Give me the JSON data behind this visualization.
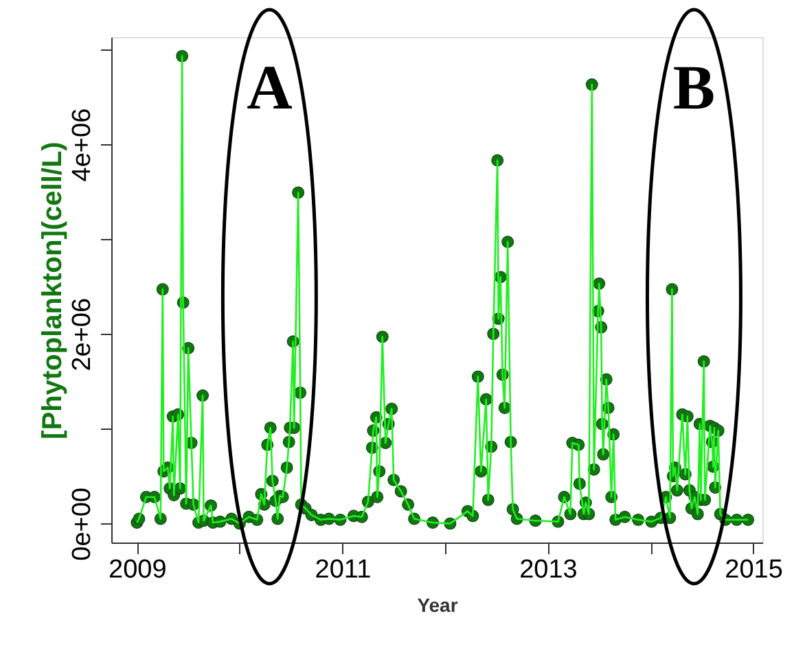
{
  "chart_data": {
    "type": "line",
    "xlabel": "Year",
    "ylabel": "[Phytoplankton](cell/L)",
    "xlim": [
      2008.75,
      2015.09
    ],
    "xticks": [
      2009,
      {
        "value": 2010,
        "label": null
      },
      2011,
      {
        "value": 2012,
        "label": null
      },
      2013,
      {
        "value": 2014,
        "label": null
      },
      2015
    ],
    "ylim": [
      -200000,
      5130000
    ],
    "yticks": [
      {
        "value": 0,
        "label": "0e+00"
      },
      {
        "value": 1000000,
        "label": null
      },
      {
        "value": 2000000,
        "label": "2e+06"
      },
      {
        "value": 3000000,
        "label": null
      },
      {
        "value": 4000000,
        "label": "4e+06"
      },
      {
        "value": 5000000,
        "label": null
      }
    ],
    "marker": "circle",
    "line_style": "solid",
    "annotations": [
      "A",
      "B"
    ],
    "series": [
      {
        "color": "#117711",
        "x": [
          2009.0,
          2009.02,
          2009.09,
          2009.17,
          2009.23,
          2009.25,
          2009.26,
          2009.3,
          2009.32,
          2009.35,
          2009.36,
          2009.4,
          2009.42,
          2009.44,
          2009.45,
          2009.48,
          2009.5,
          2009.53,
          2009.55,
          2009.6,
          2009.64,
          2009.65,
          2009.72,
          2009.74,
          2009.81,
          2009.92,
          2010.0,
          2010.09,
          2010.17,
          2010.21,
          2010.24,
          2010.27,
          2010.3,
          2010.32,
          2010.35,
          2010.37,
          2010.39,
          2010.42,
          2010.46,
          2010.48,
          2010.49,
          2010.52,
          2010.53,
          2010.57,
          2010.59,
          2010.6,
          2010.64,
          2010.7,
          2010.79,
          2010.87,
          2010.98,
          2011.11,
          2011.19,
          2011.25,
          2011.29,
          2011.3,
          2011.33,
          2011.34,
          2011.36,
          2011.39,
          2011.42,
          2011.45,
          2011.48,
          2011.5,
          2011.57,
          2011.64,
          2011.7,
          2011.88,
          2012.05,
          2012.22,
          2012.27,
          2012.32,
          2012.35,
          2012.4,
          2012.42,
          2012.45,
          2012.47,
          2012.51,
          2012.52,
          2012.54,
          2012.56,
          2012.58,
          2012.61,
          2012.64,
          2012.66,
          2012.7,
          2012.88,
          2013.1,
          2013.16,
          2013.22,
          2013.24,
          2013.3,
          2013.31,
          2013.35,
          2013.37,
          2013.4,
          2013.43,
          2013.45,
          2013.49,
          2013.5,
          2013.52,
          2013.53,
          2013.54,
          2013.57,
          2013.59,
          2013.62,
          2013.64,
          2013.66,
          2013.75,
          2013.88,
          2014.01,
          2014.1,
          2014.15,
          2014.19,
          2014.21,
          2014.22,
          2014.24,
          2014.26,
          2014.31,
          2014.34,
          2014.36,
          2014.38,
          2014.4,
          2014.43,
          2014.46,
          2014.48,
          2014.49,
          2014.52,
          2014.53,
          2014.58,
          2014.6,
          2014.61,
          2014.62,
          2014.63,
          2014.66,
          2014.68,
          2014.73,
          2014.84,
          2014.95
        ],
        "values": [
          10000,
          50000,
          280000,
          280000,
          50000,
          2470000,
          550000,
          590000,
          370000,
          1130000,
          300000,
          1150000,
          370000,
          4930000,
          2330000,
          210000,
          1850000,
          850000,
          200000,
          10000,
          1350000,
          30000,
          190000,
          10000,
          20000,
          50000,
          0,
          70000,
          40000,
          310000,
          200000,
          830000,
          1010000,
          450000,
          240000,
          50000,
          290000,
          280000,
          590000,
          860000,
          1010000,
          1920000,
          1010000,
          3490000,
          1380000,
          200000,
          160000,
          90000,
          40000,
          50000,
          40000,
          80000,
          70000,
          230000,
          800000,
          980000,
          1120000,
          280000,
          550000,
          1970000,
          850000,
          1050000,
          1210000,
          460000,
          340000,
          200000,
          50000,
          10000,
          0,
          130000,
          80000,
          1550000,
          550000,
          1310000,
          250000,
          810000,
          2000000,
          3830000,
          2160000,
          2600000,
          1570000,
          1220000,
          2970000,
          860000,
          150000,
          50000,
          30000,
          20000,
          280000,
          100000,
          850000,
          830000,
          420000,
          100000,
          220000,
          100000,
          4630000,
          570000,
          2240000,
          2530000,
          2070000,
          1050000,
          730000,
          1520000,
          1220000,
          280000,
          940000,
          40000,
          70000,
          40000,
          20000,
          60000,
          280000,
          60000,
          2470000,
          500000,
          590000,
          350000,
          1150000,
          520000,
          1130000,
          350000,
          160000,
          280000,
          100000,
          1050000,
          250000,
          1710000,
          250000,
          1030000,
          860000,
          600000,
          1010000,
          380000,
          980000,
          100000,
          40000,
          40000,
          40000
        ]
      }
    ]
  }
}
